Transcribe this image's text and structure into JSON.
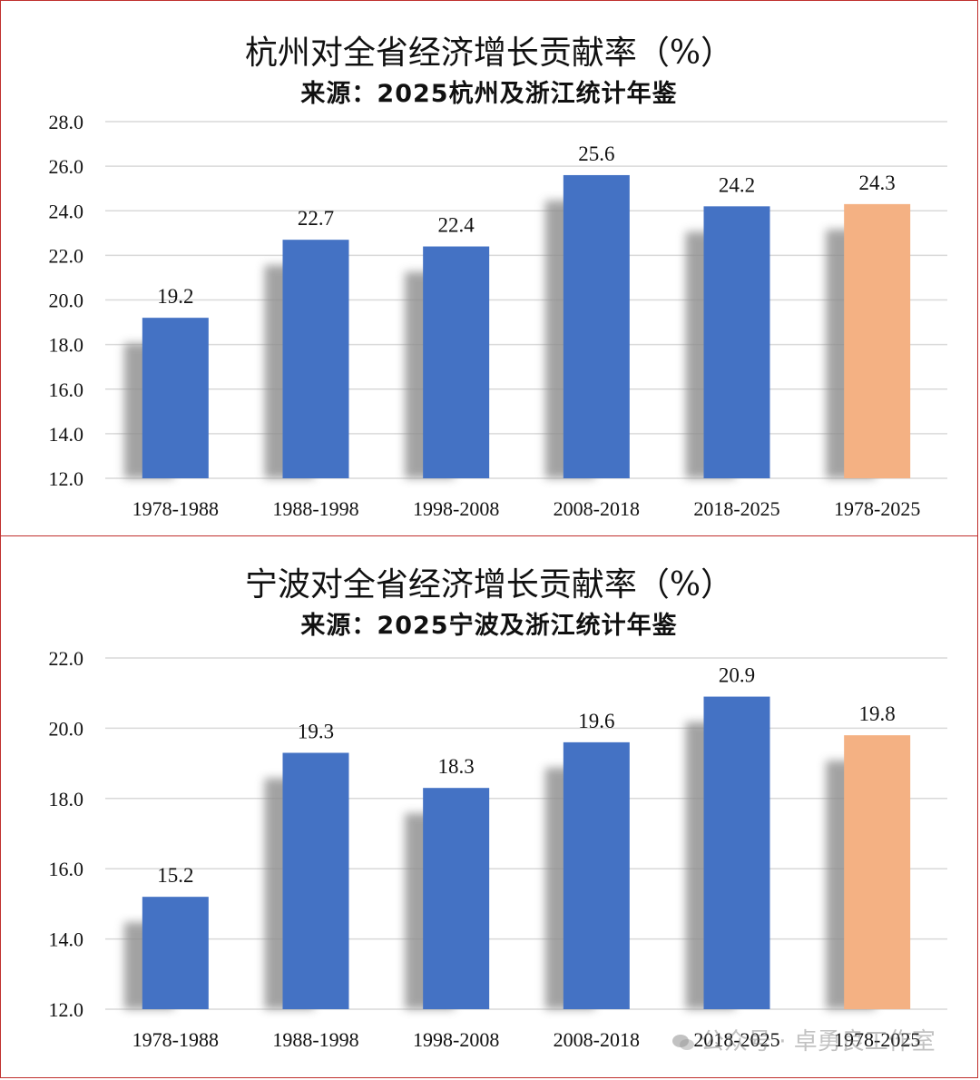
{
  "chart_data": [
    {
      "type": "bar",
      "title": "杭州对全省经济增长贡献率（%）",
      "subtitle": "来源：2025杭州及浙江统计年鉴",
      "categories": [
        "1978-1988",
        "1988-1998",
        "1998-2008",
        "2008-2018",
        "2018-2025",
        "1978-2025"
      ],
      "values": [
        19.2,
        22.7,
        22.4,
        25.6,
        24.2,
        24.3
      ],
      "data_labels": [
        "19.2",
        "22.7",
        "22.4",
        "25.6",
        "24.2",
        "24.3"
      ],
      "ylim": [
        12.0,
        28.0
      ],
      "yticks": [
        "12.0",
        "14.0",
        "16.0",
        "18.0",
        "20.0",
        "22.0",
        "24.0",
        "26.0",
        "28.0"
      ],
      "grid": true,
      "colors": {
        "bar": "#4472c4",
        "highlight": "#f4b183",
        "shadow": "#8c8c8c"
      },
      "highlight_index": 5
    },
    {
      "type": "bar",
      "title": "宁波对全省经济增长贡献率（%）",
      "subtitle": "来源：2025宁波及浙江统计年鉴",
      "categories": [
        "1978-1988",
        "1988-1998",
        "1998-2008",
        "2008-2018",
        "2018-2025",
        "1978-2025"
      ],
      "values": [
        15.2,
        19.3,
        18.3,
        19.6,
        20.9,
        19.8
      ],
      "data_labels": [
        "15.2",
        "19.3",
        "18.3",
        "19.6",
        "20.9",
        "19.8"
      ],
      "ylim": [
        12.0,
        22.0
      ],
      "yticks": [
        "12.0",
        "14.0",
        "16.0",
        "18.0",
        "20.0",
        "22.0"
      ],
      "grid": true,
      "colors": {
        "bar": "#4472c4",
        "highlight": "#f4b183",
        "shadow": "#8c8c8c"
      },
      "highlight_index": 5
    }
  ],
  "watermark": {
    "text": "公众号 · 卓勇良工作室",
    "icon": "wechat-icon"
  }
}
